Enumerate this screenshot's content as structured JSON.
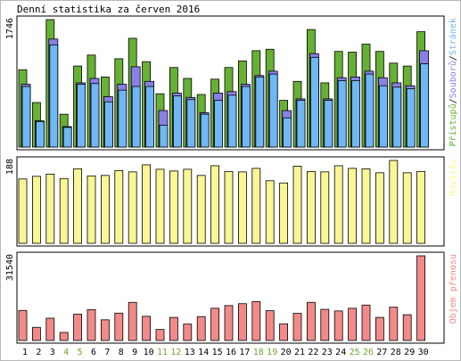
{
  "title": "Denní statistika za červen 2016",
  "colors": {
    "hits": "#66b033",
    "files": "#8a7fe8",
    "pages": "#6fb7f5",
    "visits": "#fbf694",
    "kbytes": "#f28a8a",
    "weekend_day": "#6ea62a",
    "weekday": "#000000",
    "panel_bg": "#ffffff",
    "panel_border": "#000000"
  },
  "chart_data": [
    {
      "type": "bar",
      "name": "hits-files-pages",
      "ymax_label": "1746",
      "legend": [
        {
          "text": "Přístupů",
          "color": "#66b033"
        },
        {
          "text": "/",
          "color": "#000000"
        },
        {
          "text": "Souborů",
          "color": "#8a7fe8"
        },
        {
          "text": "/",
          "color": "#000000"
        },
        {
          "text": "Stránek",
          "color": "#6fb7f5"
        }
      ],
      "ylim": [
        0,
        1746
      ],
      "categories": [
        "1",
        "2",
        "3",
        "4",
        "5",
        "6",
        "7",
        "8",
        "9",
        "10",
        "11",
        "12",
        "13",
        "14",
        "15",
        "16",
        "17",
        "18",
        "19",
        "20",
        "21",
        "22",
        "23",
        "24",
        "25",
        "26",
        "27",
        "28",
        "29",
        "30"
      ],
      "series": [
        {
          "name": "Přístupů",
          "values": [
            1060,
            610,
            1746,
            450,
            1110,
            1260,
            960,
            1210,
            1490,
            1170,
            730,
            1090,
            940,
            720,
            930,
            1090,
            1180,
            1320,
            1340,
            640,
            900,
            1610,
            880,
            1310,
            1300,
            1410,
            1310,
            1150,
            1110,
            1580
          ]
        },
        {
          "name": "Souborů",
          "values": [
            860,
            360,
            1480,
            280,
            880,
            940,
            690,
            860,
            1100,
            900,
            500,
            740,
            680,
            470,
            740,
            760,
            860,
            980,
            1040,
            500,
            660,
            1280,
            660,
            950,
            960,
            1040,
            950,
            880,
            840,
            1320
          ]
        },
        {
          "name": "Stránek",
          "values": [
            830,
            350,
            1400,
            270,
            860,
            870,
            620,
            780,
            830,
            830,
            300,
            700,
            650,
            450,
            640,
            710,
            830,
            960,
            1000,
            400,
            640,
            1230,
            640,
            910,
            910,
            1000,
            840,
            820,
            800,
            1140
          ]
        }
      ]
    },
    {
      "type": "bar",
      "name": "visits",
      "ymax_label": "188",
      "legend": [
        {
          "text": "Návštěv",
          "color": "#fbf694"
        }
      ],
      "ylim": [
        0,
        188
      ],
      "categories": [
        "1",
        "2",
        "3",
        "4",
        "5",
        "6",
        "7",
        "8",
        "9",
        "10",
        "11",
        "12",
        "13",
        "14",
        "15",
        "16",
        "17",
        "18",
        "19",
        "20",
        "21",
        "22",
        "23",
        "24",
        "25",
        "26",
        "27",
        "28",
        "29",
        "30"
      ],
      "series": [
        {
          "name": "Návštěv",
          "values": [
            146,
            152,
            157,
            147,
            169,
            153,
            154,
            165,
            162,
            178,
            168,
            164,
            168,
            154,
            176,
            163,
            162,
            170,
            142,
            137,
            175,
            163,
            162,
            176,
            170,
            169,
            160,
            188,
            160,
            163
          ]
        }
      ]
    },
    {
      "type": "bar",
      "name": "kbytes",
      "ymax_label": "31540",
      "legend": [
        {
          "text": "Objem přenosu",
          "color": "#f28a8a"
        }
      ],
      "ylim": [
        0,
        31540
      ],
      "categories": [
        "1",
        "2",
        "3",
        "4",
        "5",
        "6",
        "7",
        "8",
        "9",
        "10",
        "11",
        "12",
        "13",
        "14",
        "15",
        "16",
        "17",
        "18",
        "19",
        "20",
        "21",
        "22",
        "23",
        "24",
        "25",
        "26",
        "27",
        "28",
        "29",
        "30"
      ],
      "series": [
        {
          "name": "Objem přenosu",
          "values": [
            11200,
            4900,
            8300,
            3000,
            9800,
            11500,
            7700,
            10200,
            14200,
            9000,
            4100,
            8600,
            6100,
            8900,
            12000,
            13000,
            13700,
            14500,
            11100,
            6200,
            10100,
            14200,
            11600,
            11000,
            12000,
            13200,
            8600,
            12400,
            9600,
            31540
          ]
        }
      ]
    }
  ],
  "x_labels": [
    {
      "text": "1",
      "weekend": false
    },
    {
      "text": "2",
      "weekend": false
    },
    {
      "text": "3",
      "weekend": false
    },
    {
      "text": "4",
      "weekend": true
    },
    {
      "text": "5",
      "weekend": true
    },
    {
      "text": "6",
      "weekend": false
    },
    {
      "text": "7",
      "weekend": false
    },
    {
      "text": "8",
      "weekend": false
    },
    {
      "text": "9",
      "weekend": false
    },
    {
      "text": "10",
      "weekend": false
    },
    {
      "text": "11",
      "weekend": true
    },
    {
      "text": "12",
      "weekend": true
    },
    {
      "text": "13",
      "weekend": false
    },
    {
      "text": "14",
      "weekend": false
    },
    {
      "text": "15",
      "weekend": false
    },
    {
      "text": "16",
      "weekend": false
    },
    {
      "text": "17",
      "weekend": false
    },
    {
      "text": "18",
      "weekend": true
    },
    {
      "text": "19",
      "weekend": true
    },
    {
      "text": "20",
      "weekend": false
    },
    {
      "text": "21",
      "weekend": false
    },
    {
      "text": "22",
      "weekend": false
    },
    {
      "text": "23",
      "weekend": false
    },
    {
      "text": "24",
      "weekend": false
    },
    {
      "text": "25",
      "weekend": true
    },
    {
      "text": "26",
      "weekend": true
    },
    {
      "text": "27",
      "weekend": false
    },
    {
      "text": "28",
      "weekend": false
    },
    {
      "text": "29",
      "weekend": false
    },
    {
      "text": "30",
      "weekend": false
    }
  ]
}
